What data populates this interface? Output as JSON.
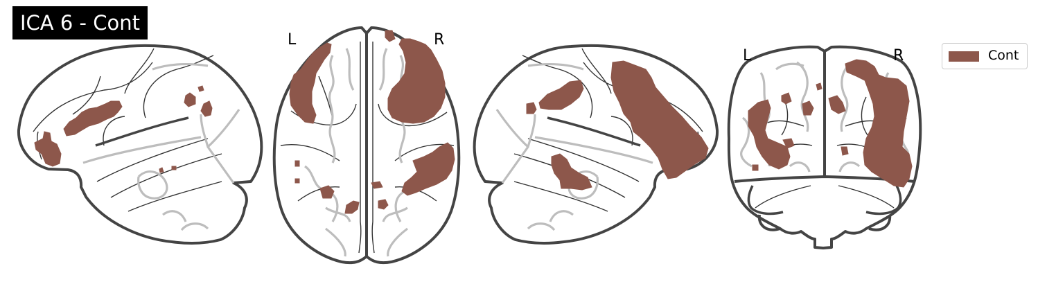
{
  "title": "ICA 6 - Cont",
  "orientation_labels": {
    "axial_left": "L",
    "axial_right": "R",
    "coronal_left": "L",
    "coronal_right": "R"
  },
  "legend": {
    "label": "Cont",
    "color": "#8d574b"
  },
  "colors": {
    "activation": "#8d574b",
    "outline": "#444444",
    "overlay": "#bdbdbd"
  }
}
